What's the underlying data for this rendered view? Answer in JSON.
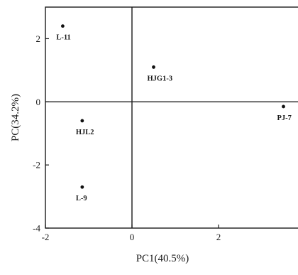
{
  "chart_data": {
    "type": "scatter",
    "title": "",
    "xlabel": "PC1(40.5%)",
    "ylabel": "PC(34.2%)",
    "xlim": [
      -2,
      4
    ],
    "ylim": [
      -4,
      3
    ],
    "xticks": [
      "-2",
      "0",
      "2",
      "4"
    ],
    "yticks": [
      "-4",
      "-2",
      "0",
      "2"
    ],
    "reference_lines": {
      "x": 0,
      "y": 0
    },
    "grid": false,
    "legend": "none",
    "marker_color": "#111111",
    "points": [
      {
        "label": "L-11",
        "x": -1.6,
        "y": 2.4
      },
      {
        "label": "HJG1-3",
        "x": 0.5,
        "y": 1.1
      },
      {
        "label": "PJ-7",
        "x": 3.5,
        "y": -0.15
      },
      {
        "label": "HJL2",
        "x": -1.15,
        "y": -0.6
      },
      {
        "label": "L-9",
        "x": -1.15,
        "y": -2.7
      }
    ]
  }
}
